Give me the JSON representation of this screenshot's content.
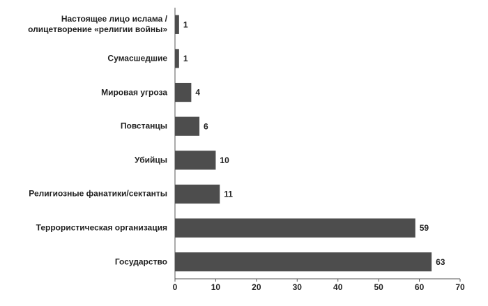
{
  "chart_data": {
    "type": "barh",
    "categories": [
      "Настоящее лицо ислама /\nолицетворение «религии войны»",
      "Сумасшедшие",
      "Мировая угроза",
      "Повстанцы",
      "Убийцы",
      "Религиозные фанатики/сектанты",
      "Террористическая организация",
      "Государство"
    ],
    "values": [
      1,
      1,
      4,
      6,
      10,
      11,
      59,
      63
    ],
    "color": "#4d4d4d",
    "xlim": [
      0,
      70
    ],
    "xticks": [
      0,
      10,
      20,
      30,
      40,
      50,
      60,
      70
    ],
    "grid": false
  }
}
